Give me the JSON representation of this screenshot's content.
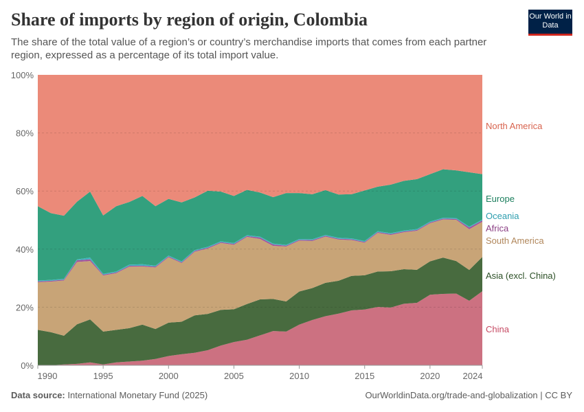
{
  "header": {
    "title": "Share of imports by region of origin, Colombia",
    "subtitle": "The share of the total value of a region’s or country’s merchandise imports that comes from each partner region, expressed as a percentage of its total import value.",
    "logo_text": "Our World in Data"
  },
  "footer": {
    "source_label": "Data source:",
    "source": "International Monetary Fund (2025)",
    "url": "OurWorldinData.org/trade-and-globalization | CC BY"
  },
  "chart_data": {
    "type": "area",
    "stacked": true,
    "title": "Share of imports by region of origin, Colombia",
    "x": [
      1990,
      1991,
      1992,
      1993,
      1994,
      1995,
      1996,
      1997,
      1998,
      1999,
      2000,
      2001,
      2002,
      2003,
      2004,
      2005,
      2006,
      2007,
      2008,
      2009,
      2010,
      2011,
      2012,
      2013,
      2014,
      2015,
      2016,
      2017,
      2018,
      2019,
      2020,
      2021,
      2022,
      2023,
      2024
    ],
    "xticks": [
      "1990",
      "1995",
      "2000",
      "2005",
      "2010",
      "2015",
      "2020",
      "2024"
    ],
    "yticks": [
      "0%",
      "20%",
      "40%",
      "60%",
      "80%",
      "100%"
    ],
    "ylim": [
      0,
      100
    ],
    "grid": "horizontal dashed",
    "legend": "right (inline labels)",
    "series": [
      {
        "name": "China",
        "color": "#CC7181",
        "label_color": "#C64A63",
        "values": [
          0,
          0,
          0.3,
          0.5,
          1,
          0.3,
          1,
          1.3,
          1.6,
          2.2,
          3.2,
          3.8,
          4.3,
          5.2,
          6.8,
          8,
          8.8,
          10.3,
          11.8,
          11.6,
          14,
          15.6,
          16.9,
          17.8,
          18.9,
          19.2,
          20.1,
          19.9,
          21.2,
          21.5,
          24.3,
          24.6,
          24.7,
          22.2,
          25.5
        ]
      },
      {
        "name": "Asia (excl. China)",
        "color": "#486B3F",
        "label_color": "#2B4F25",
        "values": [
          12.2,
          11.4,
          9.9,
          13.6,
          14.8,
          11.3,
          11.2,
          11.5,
          12.4,
          10.3,
          11.5,
          11.2,
          12.9,
          12.5,
          12.3,
          11.3,
          12.3,
          12.4,
          11.1,
          10.4,
          11.4,
          11.0,
          11.5,
          11.3,
          11.9,
          11.8,
          12.2,
          12.5,
          11.9,
          11.4,
          11.5,
          12.5,
          11.2,
          10.6,
          11.8
        ]
      },
      {
        "name": "South America",
        "color": "#C8A477",
        "label_color": "#B0865A",
        "values": [
          16.4,
          17.4,
          19.0,
          21.4,
          20.1,
          19.3,
          19.5,
          21.2,
          20.0,
          21.2,
          22.5,
          20.2,
          21.9,
          22.5,
          23.0,
          22.2,
          23.1,
          20.8,
          18.3,
          18.9,
          17.5,
          16.2,
          15.9,
          14.2,
          12.3,
          11.2,
          13.3,
          12.5,
          12.7,
          13.4,
          13.1,
          13.1,
          14.2,
          14.0,
          12.1
        ]
      },
      {
        "name": "Africa",
        "color": "#A2559C",
        "label_color": "#8B3F84",
        "values": [
          0.3,
          0.3,
          0.3,
          0.6,
          0.6,
          0.3,
          0.3,
          0.3,
          0.3,
          0.3,
          0.3,
          0.3,
          0.3,
          0.3,
          0.3,
          0.3,
          0.3,
          0.5,
          0.5,
          0.3,
          0.3,
          0.3,
          0.3,
          0.3,
          0.3,
          0.3,
          0.3,
          0.3,
          0.3,
          0.3,
          0.3,
          0.3,
          0.3,
          0.6,
          0.5
        ]
      },
      {
        "name": "Oceania",
        "color": "#3CB4C0",
        "label_color": "#2C9DAE",
        "values": [
          0.3,
          0.3,
          0.3,
          0.3,
          0.6,
          0.3,
          0.3,
          0.4,
          0.5,
          0.3,
          0.3,
          0.3,
          0.3,
          0.3,
          0.3,
          0.3,
          0.3,
          0.3,
          0.3,
          0.3,
          0.3,
          0.3,
          0.3,
          0.3,
          0.3,
          0.3,
          0.3,
          0.3,
          0.3,
          0.3,
          0.3,
          0.3,
          0.3,
          0.3,
          0.3
        ]
      },
      {
        "name": "Europe",
        "color": "#33A07E",
        "label_color": "#1B7E5D",
        "values": [
          25.6,
          23.0,
          21.7,
          19.8,
          22.7,
          20.1,
          22.5,
          21.6,
          23.5,
          20.5,
          19.5,
          20.3,
          18.1,
          19.3,
          17.1,
          16.2,
          15.6,
          15.2,
          16.0,
          17.8,
          15.8,
          15.5,
          15.4,
          14.9,
          15.2,
          17.4,
          15.3,
          16.7,
          17.1,
          17.2,
          16.3,
          16.7,
          16.4,
          18.7,
          15.6
        ]
      },
      {
        "name": "North America",
        "color": "#EB8A79",
        "label_color": "#D8634E",
        "values": [
          45.2,
          47.6,
          48.5,
          43.6,
          40.2,
          48.4,
          45.2,
          43.8,
          41.7,
          45.2,
          42.7,
          43.9,
          42.2,
          39.9,
          40.2,
          41.7,
          39.6,
          40.5,
          42.2,
          40.7,
          40.7,
          41.1,
          39.7,
          41.2,
          41.1,
          39.8,
          38.5,
          37.8,
          36.5,
          35.9,
          34.2,
          32.5,
          32.9,
          33.5,
          34.2
        ]
      }
    ]
  }
}
